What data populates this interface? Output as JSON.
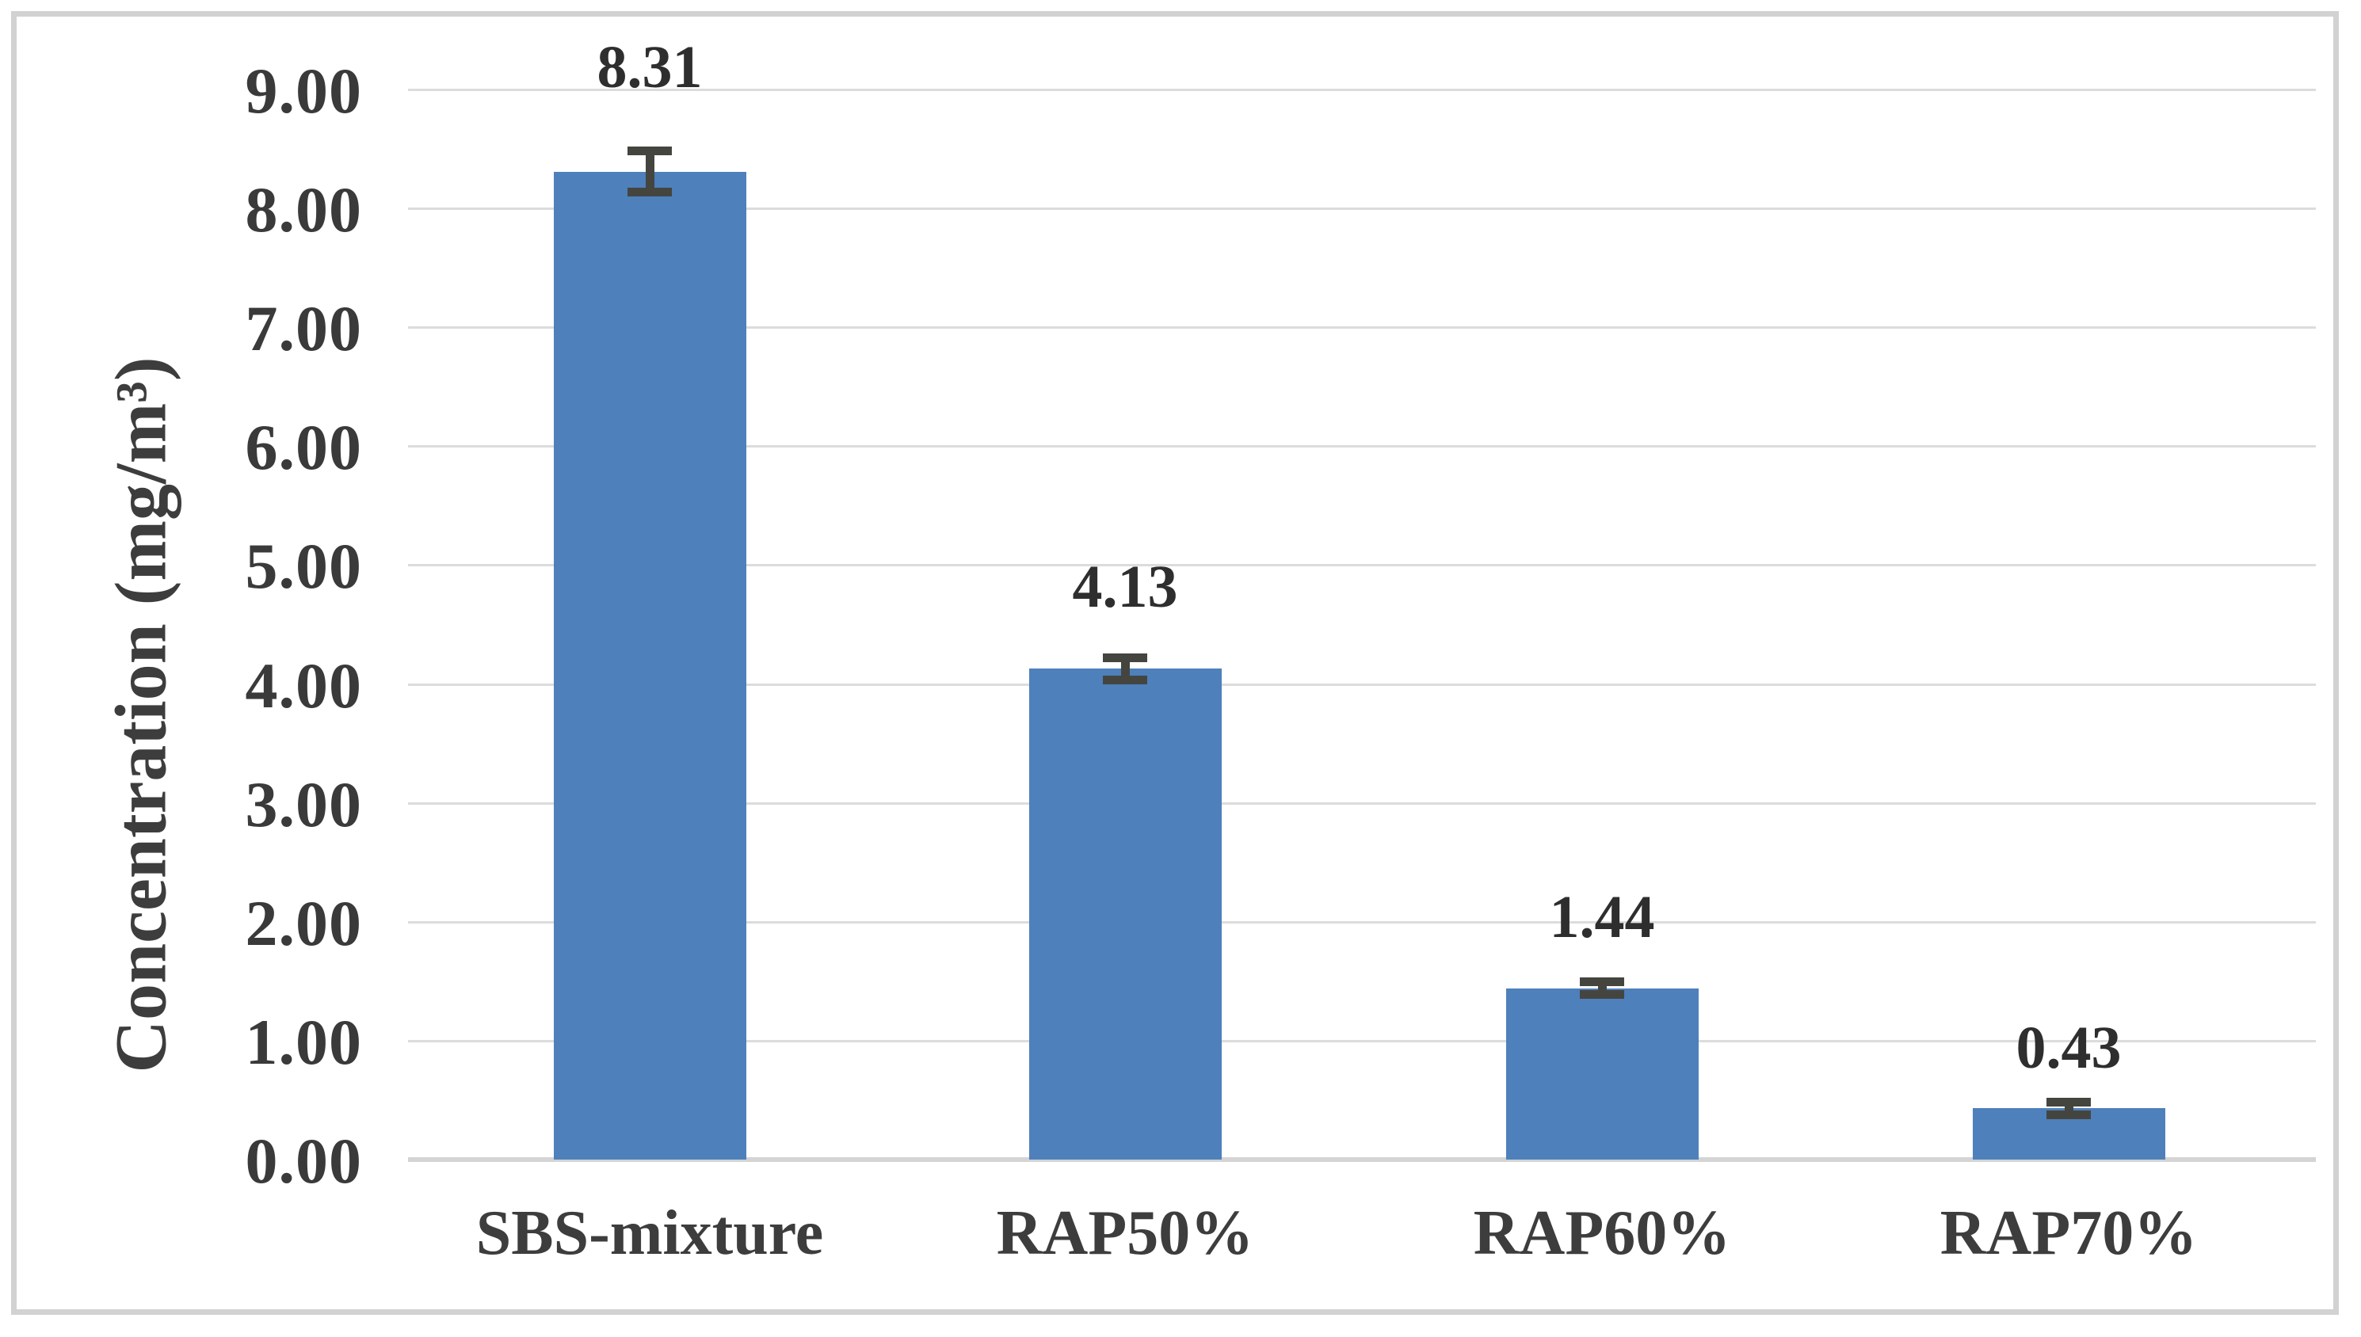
{
  "figure": {
    "background_color": "#ffffff",
    "frame_border_color": "#d2d2d2"
  },
  "chart_data": {
    "type": "bar",
    "title": "",
    "categories": [
      "SBS-mixture",
      "RAP50%",
      "RAP60%",
      "RAP70%"
    ],
    "values": [
      8.31,
      4.13,
      1.44,
      0.43
    ],
    "data_labels": [
      "8.31",
      "4.13",
      "1.44",
      "0.43"
    ],
    "error_bars": [
      0.21,
      0.13,
      0.09,
      0.09
    ],
    "xlabel": "",
    "ylabel": "Concentration (mg/m³)",
    "ylim": [
      0,
      9
    ],
    "ytick_step": 1,
    "ytick_labels": [
      "0.00",
      "1.00",
      "2.00",
      "3.00",
      "4.00",
      "5.00",
      "6.00",
      "7.00",
      "8.00",
      "9.00"
    ],
    "grid": "horizontal-only",
    "legend_position": "none",
    "bar_color": "#4e80bc",
    "error_bar_color": "#454540",
    "gridline_color": "#dcdcdc",
    "axis_line_color": "#d4d4d4",
    "text_color": "#3a3a3a"
  }
}
